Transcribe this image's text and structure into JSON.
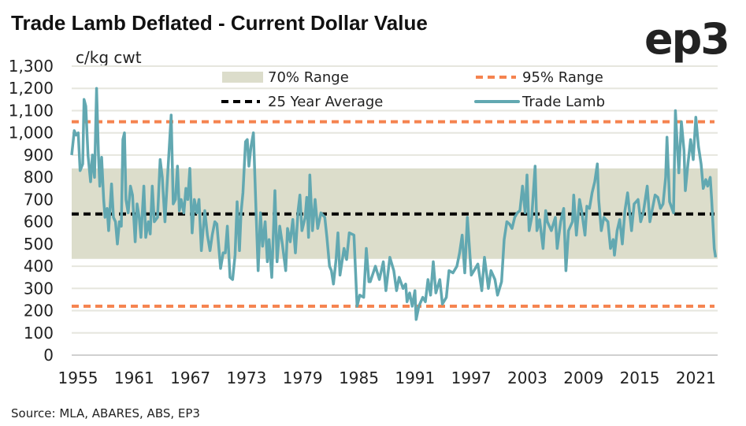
{
  "chart_data": {
    "type": "line",
    "title": "Trade Lamb Deflated -  Current Dollar Value",
    "ylabel": "c/kg cwt",
    "xlabel": "",
    "source": "Source: MLA, ABARES, ABS, EP3",
    "logo_text": "ep3",
    "xlim": [
      1955,
      2024
    ],
    "ylim": [
      0,
      1300
    ],
    "x_ticks": [
      1955,
      1961,
      1967,
      1973,
      1979,
      1985,
      1991,
      1997,
      2003,
      2009,
      2015,
      2021
    ],
    "x_tick_labels": [
      "1955",
      "1961",
      "1967",
      "1973",
      "1979",
      "1985",
      "1991",
      "1997",
      "2003",
      "2009",
      "2015",
      "2021"
    ],
    "y_ticks": [
      0,
      100,
      200,
      300,
      400,
      500,
      600,
      700,
      800,
      900,
      1000,
      1100,
      1200,
      1300
    ],
    "y_tick_labels": [
      "0",
      "100",
      "200",
      "300",
      "400",
      "500",
      "600",
      "700",
      "800",
      "900",
      "1,000",
      "1,100",
      "1,200",
      "1,300"
    ],
    "grid": true,
    "legend_placement": "top",
    "colors": {
      "trade_lamb": "#62A8B1",
      "range95": "#F5834F",
      "average": "#000000",
      "range70": "#DCDDCB",
      "grid": "#E6E6DE"
    },
    "legend": [
      {
        "label": "70% Range",
        "key": "range70"
      },
      {
        "label": "95% Range",
        "key": "range95"
      },
      {
        "label": "25 Year Average",
        "key": "average"
      },
      {
        "label": "Trade Lamb",
        "key": "trade_lamb"
      }
    ],
    "range70": [
      433,
      840
    ],
    "range95": [
      220,
      1050
    ],
    "average_25yr": 635,
    "series": [
      {
        "name": "Trade Lamb",
        "x": [
          1955.0,
          1955.28,
          1955.48,
          1955.7,
          1955.9,
          1956.18,
          1956.32,
          1956.51,
          1956.74,
          1957.02,
          1957.21,
          1957.44,
          1957.66,
          1957.86,
          1958.0,
          1958.2,
          1958.42,
          1958.56,
          1958.79,
          1958.95,
          1959.26,
          1959.46,
          1959.68,
          1959.88,
          1960.1,
          1960.3,
          1960.47,
          1960.64,
          1960.8,
          1961.03,
          1961.28,
          1961.5,
          1961.78,
          1961.98,
          1962.21,
          1962.4,
          1962.71,
          1962.91,
          1963.19,
          1963.39,
          1963.61,
          1963.83,
          1964.17,
          1964.45,
          1964.68,
          1964.96,
          1965.29,
          1965.63,
          1965.85,
          1966.08,
          1966.3,
          1966.5,
          1966.7,
          1966.98,
          1967.2,
          1967.4,
          1967.62,
          1967.87,
          1968.1,
          1968.38,
          1968.6,
          1968.85,
          1969.22,
          1969.5,
          1969.78,
          1970.01,
          1970.29,
          1970.51,
          1970.9,
          1971.18,
          1971.41,
          1971.63,
          1971.91,
          1972.19,
          1972.45,
          1972.67,
          1972.92,
          1973.09,
          1973.29,
          1973.57,
          1973.76,
          1973.93,
          1974.16,
          1974.41,
          1974.69,
          1974.92,
          1975.17,
          1975.39,
          1975.67,
          1975.9,
          1976.09,
          1976.37,
          1976.71,
          1976.94,
          1977.22,
          1977.5,
          1977.86,
          1978.06,
          1978.34,
          1978.62,
          1978.9,
          1979.18,
          1979.38,
          1979.6,
          1979.94,
          1980.11,
          1980.3,
          1980.44,
          1980.72,
          1981.0,
          1981.28,
          1981.62,
          1982.04,
          1982.26,
          1982.54,
          1982.74,
          1982.96,
          1983.24,
          1983.44,
          1983.66,
          1984.09,
          1984.37,
          1984.65,
          1985.15,
          1985.49,
          1985.77,
          1986.19,
          1986.47,
          1986.75,
          1986.89,
          1987.45,
          1987.87,
          1988.29,
          1988.57,
          1988.99,
          1989.41,
          1989.7,
          1989.98,
          1990.4,
          1990.68,
          1990.82,
          1991.1,
          1991.38,
          1991.66,
          1991.8,
          1992.08,
          1992.5,
          1992.78,
          1993.06,
          1993.34,
          1993.62,
          1993.9,
          1994.32,
          1994.6,
          1995.02,
          1995.31,
          1995.73,
          1996.15,
          1996.43,
          1996.71,
          1996.99,
          1997.27,
          1997.69,
          1997.97,
          1998.39,
          1998.81,
          1999.09,
          1999.51,
          1999.79,
          2000.21,
          2000.49,
          2000.92,
          2001.2,
          2001.48,
          2001.76,
          2002.04,
          2002.32,
          2002.6,
          2002.88,
          2003.16,
          2003.44,
          2003.64,
          2003.86,
          2004.14,
          2004.5,
          2004.7,
          2004.98,
          2005.35,
          2005.63,
          2005.82,
          2006.24,
          2006.67,
          2006.86,
          2007.23,
          2007.56,
          2007.79,
          2008.07,
          2008.49,
          2008.63,
          2008.91,
          2009.25,
          2009.47,
          2009.83,
          2010.03,
          2010.31,
          2010.59,
          2010.87,
          2011.15,
          2011.29,
          2011.57,
          2011.85,
          2012.28,
          2012.56,
          2012.84,
          2012.98,
          2013.26,
          2013.54,
          2013.82,
          2014.1,
          2014.38,
          2014.8,
          2015.08,
          2015.5,
          2015.78,
          2016.06,
          2016.48,
          2016.76,
          2017.04,
          2017.32,
          2017.61,
          2017.89,
          2018.17,
          2018.45,
          2018.59,
          2018.87,
          2019.29,
          2019.49,
          2019.85,
          2020.13,
          2020.41,
          2020.55,
          2020.83,
          2021.11,
          2021.39,
          2021.67,
          2021.95,
          2022.23,
          2022.46,
          2022.74,
          2022.93,
          2023.21,
          2023.36,
          2023.64,
          2023.78
        ],
        "y": [
          900,
          1010,
          990,
          1000,
          830,
          860,
          1150,
          1120,
          900,
          780,
          900,
          800,
          1200,
          900,
          760,
          890,
          700,
          620,
          660,
          560,
          770,
          620,
          600,
          500,
          600,
          580,
          970,
          1000,
          700,
          640,
          760,
          720,
          510,
          680,
          620,
          530,
          760,
          530,
          600,
          545,
          760,
          600,
          620,
          880,
          800,
          600,
          840,
          1080,
          680,
          700,
          850,
          650,
          700,
          640,
          750,
          700,
          840,
          550,
          700,
          640,
          700,
          470,
          650,
          540,
          470,
          540,
          600,
          590,
          390,
          460,
          460,
          580,
          350,
          340,
          450,
          690,
          470,
          640,
          730,
          960,
          970,
          850,
          940,
          1000,
          650,
          380,
          640,
          490,
          600,
          420,
          520,
          350,
          740,
          420,
          580,
          500,
          380,
          570,
          510,
          610,
          460,
          650,
          720,
          560,
          620,
          710,
          530,
          810,
          560,
          700,
          570,
          640,
          620,
          530,
          400,
          380,
          320,
          430,
          550,
          360,
          480,
          430,
          550,
          540,
          220,
          270,
          260,
          480,
          330,
          330,
          400,
          340,
          420,
          290,
          440,
          380,
          290,
          350,
          300,
          320,
          240,
          280,
          220,
          290,
          160,
          220,
          260,
          240,
          340,
          270,
          420,
          280,
          340,
          230,
          260,
          380,
          370,
          400,
          460,
          540,
          370,
          620,
          360,
          380,
          410,
          290,
          440,
          300,
          380,
          340,
          270,
          330,
          520,
          600,
          590,
          570,
          620,
          640,
          650,
          760,
          640,
          810,
          560,
          620,
          850,
          560,
          610,
          480,
          650,
          600,
          560,
          620,
          480,
          600,
          660,
          380,
          560,
          600,
          720,
          540,
          700,
          650,
          540,
          670,
          660,
          730,
          780,
          860,
          700,
          560,
          620,
          600,
          480,
          520,
          450,
          560,
          610,
          500,
          650,
          730,
          560,
          680,
          700,
          600,
          640,
          760,
          600,
          660,
          720,
          710,
          660,
          680,
          800,
          980,
          690,
          640,
          1100,
          820,
          1050,
          920,
          740,
          860,
          970,
          880,
          1070,
          940,
          860,
          750,
          790,
          760,
          800,
          700,
          480,
          440
        ]
      }
    ]
  }
}
